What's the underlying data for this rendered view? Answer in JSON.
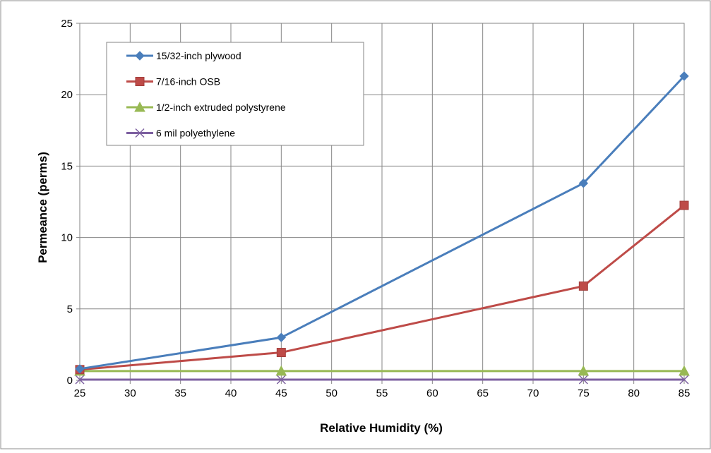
{
  "chart_data": {
    "type": "line",
    "title": "",
    "xlabel": "Relative Humidity (%)",
    "ylabel": "Permeance (perms)",
    "xlim": [
      25,
      85
    ],
    "ylim": [
      0,
      25
    ],
    "xticks": [
      25,
      30,
      35,
      40,
      45,
      50,
      55,
      60,
      65,
      70,
      75,
      80,
      85
    ],
    "yticks": [
      0,
      5,
      10,
      15,
      20,
      25
    ],
    "grid": true,
    "legend_position": "top-left",
    "x": [
      25,
      45,
      75,
      85
    ],
    "series": [
      {
        "name": "15/32-inch plywood",
        "color": "#4a7ebb",
        "marker": "diamond",
        "values": [
          0.8,
          3.0,
          13.8,
          21.3
        ]
      },
      {
        "name": "7/16-inch OSB",
        "color": "#be4b48",
        "marker": "square",
        "values": [
          0.75,
          1.95,
          6.6,
          12.25
        ]
      },
      {
        "name": "1/2-inch extruded polystyrene",
        "color": "#98b954",
        "marker": "triangle",
        "values": [
          0.65,
          0.65,
          0.65,
          0.65
        ]
      },
      {
        "name": "6 mil polyethylene",
        "color": "#7d60a0",
        "marker": "x",
        "values": [
          0.05,
          0.05,
          0.05,
          0.05
        ]
      }
    ]
  }
}
